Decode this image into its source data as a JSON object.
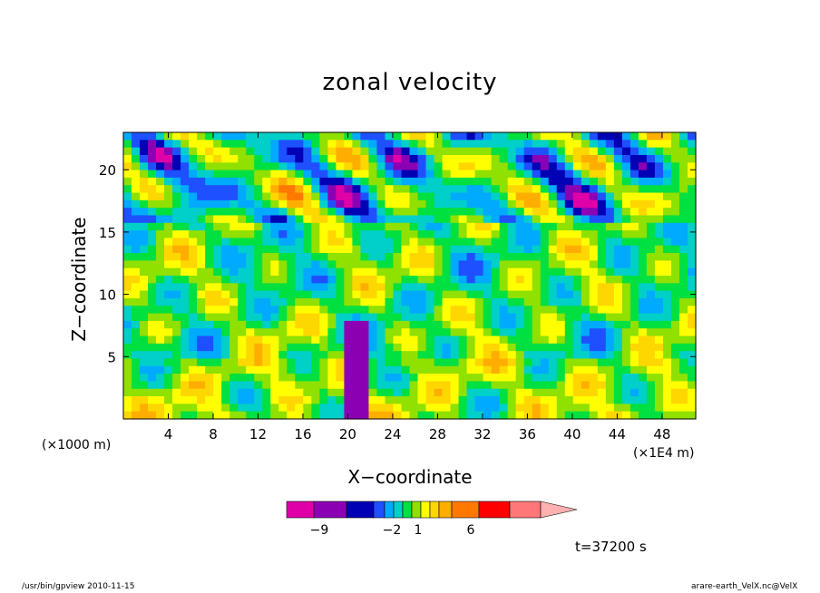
{
  "chart_data": {
    "type": "heatmap",
    "title": "zonal velocity",
    "xlabel": "X−coordinate",
    "ylabel": "Z−coordinate",
    "x_unit_left": "(×1000 m)",
    "x_unit_right": "(×1E4 m)",
    "x_ticks": [
      "4",
      "8",
      "12",
      "16",
      "20",
      "24",
      "28",
      "32",
      "36",
      "40",
      "44",
      "48"
    ],
    "y_ticks": [
      "5",
      "10",
      "15",
      "20"
    ],
    "xlim": [
      0,
      51
    ],
    "ylim": [
      0,
      23
    ],
    "colorbar": {
      "colors": [
        "#e000a8",
        "#8c00b4",
        "#0000b4",
        "#1e50ff",
        "#00aaff",
        "#00d0c8",
        "#00e040",
        "#90e000",
        "#ffff00",
        "#ffd700",
        "#ffae00",
        "#ff7800",
        "#ff0000",
        "#ff7878",
        "#ffb0b0"
      ],
      "labels": [
        "−9",
        "−2",
        "1",
        "6"
      ]
    },
    "time_label": "t=37200 s",
    "footer_left": "/usr/bin/gpview   2010-11-15",
    "footer_right": "arare-earth_VelX.nc@VelX"
  }
}
